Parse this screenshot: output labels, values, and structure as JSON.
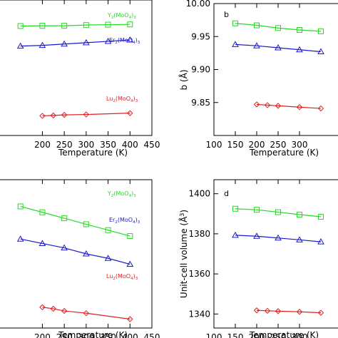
{
  "colors": {
    "Y2(MoO4)3": "#22dd22",
    "Er2(MoO4)3": "#1a1acc",
    "Lu2(MoO4)3": "#e02020"
  },
  "chart_data": [
    {
      "type": "line",
      "panel": "a",
      "xlabel": "Temperature (K)",
      "ylabel": "",
      "xlim": [
        100,
        450
      ],
      "x_ticks": [
        200,
        250,
        300,
        350,
        400,
        450
      ],
      "y_ticks": [],
      "series": [
        {
          "name": "Y2(MoO4)3",
          "marker": "square",
          "x": [
            150,
            200,
            250,
            300,
            350,
            400
          ],
          "y": [
            0.808,
            0.81,
            0.81,
            0.815,
            0.818,
            0.82
          ]
        },
        {
          "name": "Er2(MoO4)3",
          "marker": "triangle",
          "x": [
            150,
            200,
            250,
            300,
            350,
            400
          ],
          "y": [
            0.66,
            0.665,
            0.675,
            0.685,
            0.695,
            0.705
          ]
        },
        {
          "name": "Lu2(MoO4)3",
          "marker": "diamond",
          "x": [
            200,
            225,
            250,
            300,
            400
          ],
          "y": [
            0.145,
            0.148,
            0.152,
            0.155,
            0.165
          ]
        }
      ]
    },
    {
      "type": "line",
      "panel": "b",
      "xlabel": "Temperature (K)",
      "ylabel": "b (Å)",
      "xlim": [
        100,
        400
      ],
      "ylim": [
        9.8,
        10.0
      ],
      "x_ticks": [
        100,
        150,
        200,
        250,
        300
      ],
      "y_ticks": [
        9.85,
        9.9,
        9.95,
        10.0
      ],
      "series": [
        {
          "name": "Y2(MoO4)3",
          "marker": "square",
          "x": [
            150,
            200,
            250,
            300,
            350
          ],
          "y": [
            9.97,
            9.967,
            9.963,
            9.96,
            9.958
          ]
        },
        {
          "name": "Er2(MoO4)3",
          "marker": "triangle",
          "x": [
            150,
            200,
            250,
            300,
            350
          ],
          "y": [
            9.938,
            9.936,
            9.933,
            9.93,
            9.927
          ]
        },
        {
          "name": "Lu2(MoO4)3",
          "marker": "diamond",
          "x": [
            200,
            225,
            250,
            300,
            350
          ],
          "y": [
            9.847,
            9.846,
            9.845,
            9.843,
            9.841
          ]
        }
      ]
    },
    {
      "type": "line",
      "panel": "c",
      "xlabel": "Temperature (K)",
      "ylabel": "",
      "xlim": [
        100,
        450
      ],
      "x_ticks": [
        200,
        250,
        300,
        350,
        400,
        450
      ],
      "y_ticks": [],
      "series": [
        {
          "name": "Y2(MoO4)3",
          "marker": "square",
          "x": [
            150,
            200,
            250,
            300,
            350,
            400
          ],
          "y": [
            0.82,
            0.78,
            0.74,
            0.7,
            0.66,
            0.62
          ]
        },
        {
          "name": "Er2(MoO4)3",
          "marker": "triangle",
          "x": [
            150,
            200,
            250,
            300,
            350,
            400
          ],
          "y": [
            0.6,
            0.57,
            0.54,
            0.5,
            0.47,
            0.43
          ]
        },
        {
          "name": "Lu2(MoO4)3",
          "marker": "diamond",
          "x": [
            200,
            225,
            250,
            300,
            400
          ],
          "y": [
            0.14,
            0.13,
            0.115,
            0.1,
            0.06
          ]
        }
      ]
    },
    {
      "type": "line",
      "panel": "d",
      "xlabel": "Temperature (K)",
      "ylabel": "Unit-cell volume (Å³)",
      "xlim": [
        100,
        400
      ],
      "ylim": [
        1333,
        1407
      ],
      "x_ticks": [
        100,
        150,
        200,
        250,
        300
      ],
      "y_ticks": [
        1340,
        1360,
        1380,
        1400
      ],
      "series": [
        {
          "name": "Y2(MoO4)3",
          "marker": "square",
          "x": [
            150,
            200,
            250,
            300,
            350
          ],
          "y": [
            1392.5,
            1392.0,
            1390.8,
            1389.6,
            1388.5
          ]
        },
        {
          "name": "Er2(MoO4)3",
          "marker": "triangle",
          "x": [
            150,
            200,
            250,
            300,
            350
          ],
          "y": [
            1379.3,
            1378.8,
            1377.9,
            1377.0,
            1376.0
          ]
        },
        {
          "name": "Lu2(MoO4)3",
          "marker": "diamond",
          "x": [
            200,
            225,
            250,
            300,
            350
          ],
          "y": [
            1341.8,
            1341.6,
            1341.4,
            1341.1,
            1340.6
          ]
        }
      ]
    }
  ],
  "labels": {
    "y_formula": {
      "head": "Y",
      "sub1": "2",
      "mid": "(MoO",
      "sub2": "4",
      "tail": ")",
      "sub3": "3"
    },
    "er_formula": {
      "head": "Er",
      "sub1": "2",
      "mid": "(MoO",
      "sub2": "4",
      "tail": ")",
      "sub3": "3"
    },
    "lu_formula": {
      "head": "Lu",
      "sub1": "2",
      "mid": "(MoO",
      "sub2": "4",
      "tail": ")",
      "sub3": "3"
    },
    "panel_b": "b",
    "panel_d": "d",
    "temp_label": "Temperature (K)",
    "b_ylabel": "b (Å)",
    "vol_ylabel_main": "Unit-cell volume (Å",
    "vol_ylabel_sup": "3",
    "vol_ylabel_end": ")"
  }
}
